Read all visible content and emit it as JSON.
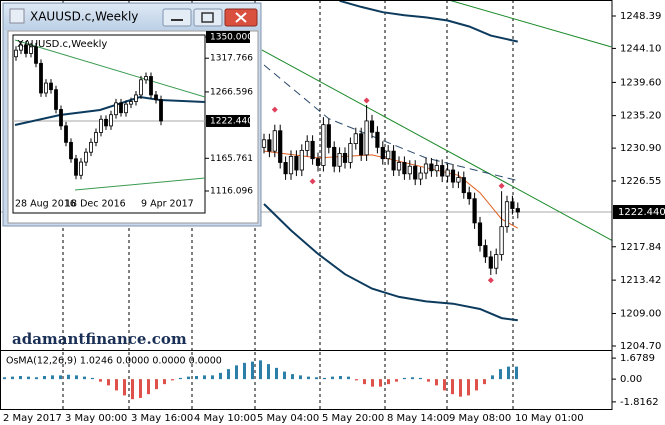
{
  "chart_data": [
    {
      "type": "candlestick",
      "categories": [
        "2 May 2017",
        "3 May 00:00",
        "3 May 16:00",
        "4 May 10:00",
        "5 May 04:00",
        "5 May 20:00",
        "8 May 14:00",
        "9 May 08:00",
        "10 May 01:00"
      ],
      "open": [
        1231.0,
        1232.0,
        1230.5,
        1233.2,
        1229.0,
        1227.5,
        1229.8,
        1228.0,
        1230.6,
        1231.8,
        1229.5,
        1228.6,
        1234.0,
        1231.0,
        1228.5,
        1230.2,
        1229.0,
        1231.5,
        1232.8,
        1230.0,
        1234.5,
        1233.0,
        1231.0,
        1229.5,
        1230.5,
        1228.0,
        1229.0,
        1227.5,
        1228.5,
        1226.8,
        1227.6,
        1228.8,
        1227.9,
        1228.6,
        1227.2,
        1228.0,
        1226.4,
        1227.0,
        1225.0,
        1224.2,
        1221.0,
        1218.0,
        1216.5,
        1215.0,
        1216.8,
        1220.5,
        1223.8,
        1222.9
      ],
      "high": [
        1232.8,
        1232.8,
        1234.0,
        1234.0,
        1229.8,
        1230.6,
        1230.6,
        1231.4,
        1232.6,
        1232.6,
        1230.3,
        1235.0,
        1234.8,
        1231.8,
        1231.0,
        1231.0,
        1232.3,
        1233.6,
        1233.6,
        1236.6,
        1235.3,
        1233.8,
        1231.8,
        1231.3,
        1231.3,
        1229.8,
        1229.8,
        1229.3,
        1229.3,
        1228.4,
        1229.6,
        1229.6,
        1229.4,
        1229.4,
        1228.8,
        1228.8,
        1227.8,
        1227.8,
        1225.8,
        1225.0,
        1221.8,
        1218.8,
        1217.3,
        1217.6,
        1225.2,
        1224.6,
        1224.6,
        1223.7
      ],
      "low": [
        1230.2,
        1229.7,
        1229.7,
        1228.2,
        1226.7,
        1226.7,
        1227.2,
        1227.2,
        1229.8,
        1228.7,
        1227.8,
        1227.8,
        1230.2,
        1227.7,
        1227.7,
        1228.2,
        1228.2,
        1230.7,
        1229.2,
        1229.2,
        1232.2,
        1230.2,
        1228.7,
        1228.7,
        1227.2,
        1227.2,
        1226.7,
        1226.7,
        1226.0,
        1226.0,
        1226.8,
        1227.1,
        1227.1,
        1226.4,
        1226.4,
        1225.6,
        1225.6,
        1224.2,
        1223.4,
        1220.2,
        1217.2,
        1215.7,
        1214.1,
        1214.2,
        1216.0,
        1219.7,
        1222.1,
        1221.6
      ],
      "close": [
        1232.0,
        1230.5,
        1233.2,
        1229.0,
        1227.5,
        1229.8,
        1228.0,
        1230.6,
        1231.8,
        1229.5,
        1228.6,
        1234.0,
        1231.0,
        1228.5,
        1230.2,
        1229.0,
        1231.5,
        1232.8,
        1230.0,
        1234.5,
        1233.0,
        1231.0,
        1229.5,
        1230.5,
        1228.0,
        1229.0,
        1227.5,
        1228.5,
        1226.8,
        1227.6,
        1228.8,
        1227.9,
        1228.6,
        1227.2,
        1228.0,
        1226.4,
        1227.0,
        1225.0,
        1224.2,
        1221.0,
        1218.0,
        1216.5,
        1215.0,
        1216.8,
        1220.5,
        1223.8,
        1222.9,
        1222.44
      ],
      "ylim": [
        1204.17,
        1250.51
      ],
      "yticks": [
        1248.39,
        {
          "value": 1244.1,
          "label": "1244.10"
        },
        {
          "value": 1239.6,
          "label": "1239.60"
        },
        {
          "value": 1235.2,
          "label": "1235.20"
        },
        {
          "value": 1230.9,
          "label": "1230.90"
        },
        1226.55,
        1217.84,
        1213.42,
        {
          "value": 1209,
          "label": "1209.00"
        },
        {
          "value": 1204.7,
          "label": "1204.70"
        }
      ],
      "current_price": {
        "value": 1222.44,
        "label": "1222.440"
      },
      "lines": [
        {
          "color": "#0d3b5e",
          "x": [
            14,
            18,
            22,
            26,
            30,
            34,
            38,
            42,
            47
          ],
          "values": [
            1250.4,
            1249.6,
            1248.9,
            1248.5,
            1248.2,
            1247.8,
            1247.0,
            1245.8,
            1245.0
          ]
        },
        {
          "color": "#0d3b5e",
          "x": [
            0,
            5,
            10,
            15,
            20,
            25,
            30,
            35,
            40,
            44,
            47
          ],
          "values": [
            1223.5,
            1220.0,
            1216.9,
            1214.2,
            1212.3,
            1211.2,
            1210.6,
            1210.3,
            1209.6,
            1208.4,
            1208.1
          ]
        },
        {
          "color": "#e06020",
          "x": [
            0,
            10,
            20,
            30,
            36,
            40,
            44,
            47
          ],
          "values": [
            1230.5,
            1229.6,
            1230.0,
            1228.3,
            1227.3,
            1225.0,
            1221.5,
            1220.3
          ]
        },
        {
          "color": "#1a8a2a",
          "x": [
            34.3,
            64.3
          ],
          "values": [
            1250.5,
            1244.3
          ]
        },
        {
          "color": "#1a8a2a",
          "x": [
            -0.4,
            64.4
          ],
          "values": [
            1243.9,
            1218.7
          ]
        },
        {
          "color": "#2a4a6a",
          "dashed": true,
          "x": [
            0,
            12,
            30,
            47
          ],
          "values": [
            1241.9,
            1234.8,
            1229.6,
            1226.6
          ]
        }
      ],
      "fractals": {
        "color": "#e0405a",
        "x": [
          2,
          9,
          19,
          42,
          44
        ],
        "values": [
          1236.0,
          1226.5,
          1237.2,
          1213.4,
          1225.9
        ]
      },
      "watermark": "adamantfinance.com"
    },
    {
      "type": "bar",
      "title": "OsMA(12,26,9) 1.0246 0.0000 0.0000 0.0000",
      "values": [
        0.15,
        0.2,
        0.25,
        0.2,
        0.15,
        0.25,
        0.3,
        0.3,
        0.35,
        0.3,
        0.2,
        0.1,
        -0.2,
        -0.5,
        -0.9,
        -1.3,
        -1.6,
        -1.5,
        -1.2,
        -0.8,
        -0.4,
        -0.1,
        0.1,
        0.2,
        0.25,
        0.3,
        0.3,
        0.5,
        0.8,
        1.1,
        1.3,
        1.4,
        1.5,
        1.2,
        0.9,
        0.6,
        0.4,
        0.3,
        0.2,
        0.15,
        0.1,
        0.2,
        0.25,
        0.2,
        -0.1,
        -0.4,
        -0.6,
        -0.6,
        -0.4,
        -0.2,
        0.1,
        0.15,
        0.1,
        -0.2,
        -0.5,
        -0.9,
        -1.2,
        -1.4,
        -1.3,
        -0.9,
        -0.4,
        0.3,
        0.8,
        1.0,
        1.0
      ],
      "color": "#2b7fa8",
      "negative_color": "#e0504a",
      "ylim": [
        -2.385,
        2.167
      ],
      "yticks": [
        1.6789,
        {
          "value": 0,
          "label": "0.00"
        },
        -1.8162
      ]
    },
    {
      "type": "candlestick",
      "title": "XAUUSD.c,Weekly",
      "categories": [
        "28 Aug 2016",
        "18 Dec 2016",
        "9 Apr 2017"
      ],
      "open": [
        1320,
        1330,
        1338,
        1325,
        1335,
        1310,
        1265,
        1280,
        1270,
        1240,
        1215,
        1190,
        1165,
        1140,
        1160,
        1175,
        1190,
        1205,
        1225,
        1215,
        1232,
        1250,
        1235,
        1248,
        1252,
        1262,
        1285,
        1290,
        1262,
        1255
      ],
      "high": [
        1336,
        1344,
        1344,
        1341,
        1341,
        1316,
        1286,
        1286,
        1276,
        1246,
        1221,
        1196,
        1171,
        1166,
        1181,
        1196,
        1211,
        1231,
        1231,
        1238,
        1256,
        1256,
        1254,
        1258,
        1268,
        1291,
        1296,
        1296,
        1268,
        1261
      ],
      "low": [
        1314,
        1324,
        1319,
        1319,
        1304,
        1259,
        1259,
        1264,
        1234,
        1209,
        1184,
        1159,
        1134,
        1134,
        1154,
        1169,
        1184,
        1199,
        1209,
        1209,
        1226,
        1229,
        1229,
        1242,
        1246,
        1256,
        1279,
        1256,
        1249,
        1216
      ],
      "close": [
        1330,
        1338,
        1325,
        1335,
        1310,
        1265,
        1280,
        1270,
        1240,
        1215,
        1190,
        1165,
        1140,
        1160,
        1175,
        1190,
        1205,
        1225,
        1215,
        1232,
        1250,
        1235,
        1248,
        1252,
        1262,
        1285,
        1290,
        1262,
        1255,
        1222.44
      ],
      "ylim": [
        1106.98,
        1353.04
      ],
      "yticks": [
        {
          "value": 1350,
          "label": "1350.000"
        },
        1317.766,
        1266.596,
        1165.761,
        1116.096
      ],
      "current_price": {
        "value": 1222.44,
        "label": "1222.440"
      },
      "lines": [
        {
          "color": "#3a9a50",
          "x": [
            -0.2,
            37.8
          ],
          "values": [
            1345.4,
            1258.8
          ]
        },
        {
          "color": "#3a9a50",
          "x": [
            11.8,
            37.8
          ],
          "values": [
            1117.6,
            1135.8
          ]
        },
        {
          "color": "#0d3b5e",
          "x": [
            -0.2,
            8.8,
            16.8,
            24.8,
            28.8,
            37.8
          ],
          "values": [
            1216.3,
            1231.5,
            1239.1,
            1258.9,
            1254.3,
            1251.3
          ]
        }
      ]
    }
  ]
}
